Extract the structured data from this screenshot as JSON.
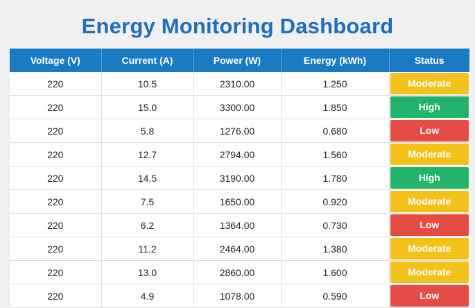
{
  "header": {
    "title": "Energy Monitoring Dashboard"
  },
  "table": {
    "columns": [
      "Voltage (V)",
      "Current (A)",
      "Power (W)",
      "Energy (kWh)",
      "Status"
    ],
    "rows": [
      {
        "voltage": "220",
        "current": "10.5",
        "power": "2310.00",
        "energy": "1.250",
        "status": "Moderate",
        "level": "moderate"
      },
      {
        "voltage": "220",
        "current": "15.0",
        "power": "3300.00",
        "energy": "1.850",
        "status": "High",
        "level": "high"
      },
      {
        "voltage": "220",
        "current": "5.8",
        "power": "1276.00",
        "energy": "0.680",
        "status": "Low",
        "level": "low"
      },
      {
        "voltage": "220",
        "current": "12.7",
        "power": "2794.00",
        "energy": "1.560",
        "status": "Moderate",
        "level": "moderate"
      },
      {
        "voltage": "220",
        "current": "14.5",
        "power": "3190.00",
        "energy": "1.780",
        "status": "High",
        "level": "high"
      },
      {
        "voltage": "220",
        "current": "7.5",
        "power": "1650.00",
        "energy": "0.920",
        "status": "Moderate",
        "level": "moderate"
      },
      {
        "voltage": "220",
        "current": "6.2",
        "power": "1364.00",
        "energy": "0.730",
        "status": "Low",
        "level": "low"
      },
      {
        "voltage": "220",
        "current": "11.2",
        "power": "2464.00",
        "energy": "1.380",
        "status": "Moderate",
        "level": "moderate"
      },
      {
        "voltage": "220",
        "current": "13.0",
        "power": "2860.00",
        "energy": "1.600",
        "status": "Moderate",
        "level": "moderate"
      },
      {
        "voltage": "220",
        "current": "4.9",
        "power": "1078.00",
        "energy": "0.590",
        "status": "Low",
        "level": "low"
      }
    ]
  },
  "colors": {
    "title": "#1c6fb8",
    "header_bg": "#1a7bc4",
    "moderate": "#f2c21b",
    "high": "#22b26a",
    "low": "#e74b45"
  }
}
